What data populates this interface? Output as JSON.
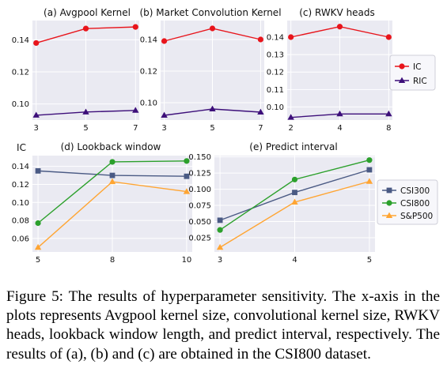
{
  "chart_data": [
    {
      "id": "a",
      "type": "line",
      "title": "(a) Avgpool Kernel",
      "categories": [
        "3",
        "5",
        "7"
      ],
      "series": [
        {
          "name": "IC",
          "values": [
            0.138,
            0.147,
            0.148
          ],
          "color": "#e8141b",
          "marker": "circle"
        },
        {
          "name": "RIC",
          "values": [
            0.093,
            0.095,
            0.096
          ],
          "color": "#3d0f7a",
          "marker": "triangle"
        }
      ],
      "ylim": [
        0.09,
        0.152
      ],
      "yticks": [
        "0.10",
        "0.12",
        "0.14"
      ],
      "ytick_values": [
        0.1,
        0.12,
        0.14
      ],
      "grid": true
    },
    {
      "id": "b",
      "type": "line",
      "title": "(b) Market Convolution Kernel",
      "categories": [
        "3",
        "5",
        "7"
      ],
      "series": [
        {
          "name": "IC",
          "values": [
            0.139,
            0.147,
            0.14
          ],
          "color": "#e8141b",
          "marker": "circle"
        },
        {
          "name": "RIC",
          "values": [
            0.092,
            0.096,
            0.094
          ],
          "color": "#3d0f7a",
          "marker": "triangle"
        }
      ],
      "ylim": [
        0.089,
        0.152
      ],
      "yticks": [
        "0.10",
        "0.12",
        "0.14"
      ],
      "ytick_values": [
        0.1,
        0.12,
        0.14
      ],
      "grid": true
    },
    {
      "id": "c",
      "type": "line",
      "title": "(c) RWKV heads",
      "categories": [
        "2",
        "4",
        "8"
      ],
      "series": [
        {
          "name": "IC",
          "values": [
            0.14,
            0.146,
            0.14
          ],
          "color": "#e8141b",
          "marker": "circle"
        },
        {
          "name": "RIC",
          "values": [
            0.094,
            0.096,
            0.096
          ],
          "color": "#3d0f7a",
          "marker": "triangle"
        }
      ],
      "ylim": [
        0.0925,
        0.1495
      ],
      "yticks": [
        "0.10",
        "0.11",
        "0.12",
        "0.13",
        "0.14"
      ],
      "ytick_values": [
        0.1,
        0.11,
        0.12,
        0.13,
        0.14
      ],
      "grid": true
    },
    {
      "id": "d",
      "type": "line",
      "title": "(d) Lookback window",
      "ylabel": "IC",
      "categories": [
        "5",
        "8",
        "10"
      ],
      "series": [
        {
          "name": "CSI300",
          "values": [
            0.135,
            0.13,
            0.129
          ],
          "color": "#4a5a84",
          "marker": "square"
        },
        {
          "name": "CSI800",
          "values": [
            0.077,
            0.145,
            0.146
          ],
          "color": "#2ca02c",
          "marker": "circle"
        },
        {
          "name": "S&P500",
          "values": [
            0.05,
            0.123,
            0.112
          ],
          "color": "#ffa533",
          "marker": "triangle"
        }
      ],
      "ylim": [
        0.045,
        0.152
      ],
      "yticks": [
        "0.06",
        "0.08",
        "0.10",
        "0.12",
        "0.14"
      ],
      "ytick_values": [
        0.06,
        0.08,
        0.1,
        0.12,
        0.14
      ],
      "grid": true
    },
    {
      "id": "e",
      "type": "line",
      "title": "(e) Predict interval",
      "categories": [
        "3",
        "4",
        "5"
      ],
      "series": [
        {
          "name": "CSI300",
          "values": [
            0.052,
            0.095,
            0.13
          ],
          "color": "#4a5a84",
          "marker": "square"
        },
        {
          "name": "CSI800",
          "values": [
            0.037,
            0.115,
            0.145
          ],
          "color": "#2ca02c",
          "marker": "circle"
        },
        {
          "name": "S&P500",
          "values": [
            0.01,
            0.08,
            0.112
          ],
          "color": "#ffa533",
          "marker": "triangle"
        }
      ],
      "ylim": [
        0.003,
        0.152
      ],
      "yticks": [
        "0.025",
        "0.050",
        "0.075",
        "0.100",
        "0.125",
        "0.150"
      ],
      "ytick_values": [
        0.025,
        0.05,
        0.075,
        0.1,
        0.125,
        0.15
      ],
      "grid": true
    }
  ],
  "legends": [
    {
      "id": "top",
      "placement": "right of (c)",
      "entries": [
        {
          "label": "IC",
          "color": "#e8141b",
          "marker": "circle"
        },
        {
          "label": "RIC",
          "color": "#3d0f7a",
          "marker": "triangle"
        }
      ]
    },
    {
      "id": "bottom",
      "placement": "right of (e)",
      "entries": [
        {
          "label": "CSI300",
          "color": "#4a5a84",
          "marker": "square"
        },
        {
          "label": "CSI800",
          "color": "#2ca02c",
          "marker": "circle"
        },
        {
          "label": "S&P500",
          "color": "#ffa533",
          "marker": "triangle"
        }
      ]
    }
  ],
  "colors": {
    "plot_background": "#eaeaf2",
    "grid": "#ffffff"
  },
  "caption": "Figure 5: The results of hyperparameter sensitivity. The x-axis in the plots represents Avgpool kernel size, convolutional kernel size, RWKV heads, lookback window length, and predict interval, respectively. The results of (a), (b) and (c) are obtained in the CSI800 dataset."
}
